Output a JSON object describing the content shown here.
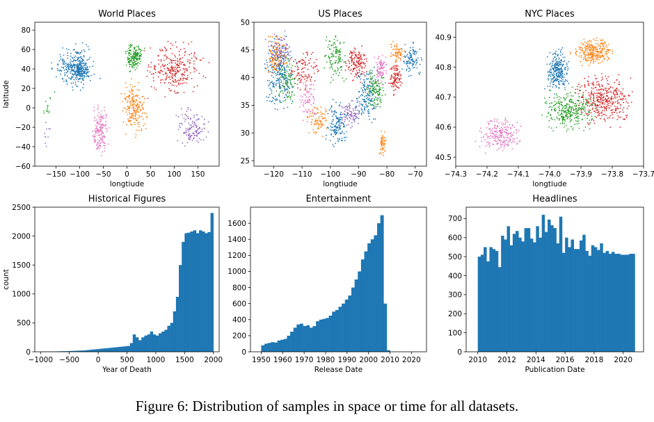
{
  "caption": "Figure 6: Distribution of samples in space or time for all datasets.",
  "colors": {
    "blue": "#1f77b4",
    "orange": "#ff7f0e",
    "green": "#2ca02c",
    "red": "#d62728",
    "purple": "#9467bd",
    "pink": "#e377c2"
  },
  "chart_data": [
    {
      "id": "world",
      "type": "scatter",
      "title": "World Places",
      "xlabel": "longtiude",
      "ylabel": "latitude",
      "xlim": [
        -195,
        195
      ],
      "ylim": [
        -60,
        88
      ],
      "xticks": [
        -150,
        -100,
        -50,
        0,
        50,
        100,
        150
      ],
      "yticks": [
        -60,
        -40,
        -20,
        0,
        20,
        40,
        60,
        80
      ],
      "clusters": [
        {
          "color": "blue",
          "lon": [
            -165,
            -55
          ],
          "lat": [
            15,
            72
          ],
          "n": 260
        },
        {
          "color": "blue",
          "lon": [
            -125,
            -75
          ],
          "lat": [
            25,
            50
          ],
          "n": 140
        },
        {
          "color": "pink",
          "lon": [
            -80,
            -35
          ],
          "lat": [
            -55,
            10
          ],
          "n": 160
        },
        {
          "color": "green",
          "lon": [
            -10,
            40
          ],
          "lat": [
            35,
            70
          ],
          "n": 170
        },
        {
          "color": "orange",
          "lon": [
            -18,
            50
          ],
          "lat": [
            -35,
            35
          ],
          "n": 200
        },
        {
          "color": "red",
          "lon": [
            25,
            180
          ],
          "lat": [
            5,
            75
          ],
          "n": 280
        },
        {
          "color": "purple",
          "lon": [
            95,
            180
          ],
          "lat": [
            -45,
            5
          ],
          "n": 130
        },
        {
          "color": "green",
          "lon": [
            -180,
            -150
          ],
          "lat": [
            -25,
            25
          ],
          "n": 14
        },
        {
          "color": "purple",
          "lon": [
            -180,
            -160
          ],
          "lat": [
            -45,
            -10
          ],
          "n": 10
        }
      ]
    },
    {
      "id": "us",
      "type": "scatter",
      "title": "US Places",
      "xlabel": "longtiude",
      "ylabel": "",
      "xlim": [
        -127,
        -66
      ],
      "ylim": [
        24,
        50
      ],
      "xticks": [
        -120,
        -110,
        -100,
        -90,
        -80,
        -70
      ],
      "yticks": [
        25,
        30,
        35,
        40,
        45,
        50
      ],
      "clusters": [
        {
          "color": "blue",
          "lon": [
            -125,
            -111
          ],
          "lat": [
            32,
            49
          ],
          "n": 260
        },
        {
          "color": "orange",
          "lon": [
            -124,
            -114
          ],
          "lat": [
            39,
            49
          ],
          "n": 120
        },
        {
          "color": "purple",
          "lon": [
            -124,
            -112
          ],
          "lat": [
            41,
            49
          ],
          "n": 80
        },
        {
          "color": "green",
          "lon": [
            -120,
            -110
          ],
          "lat": [
            34,
            45
          ],
          "n": 100
        },
        {
          "color": "red",
          "lon": [
            -116,
            -103
          ],
          "lat": [
            37,
            46
          ],
          "n": 100
        },
        {
          "color": "pink",
          "lon": [
            -112,
            -104
          ],
          "lat": [
            31,
            41
          ],
          "n": 70
        },
        {
          "color": "orange",
          "lon": [
            -109,
            -100
          ],
          "lat": [
            29,
            36
          ],
          "n": 80
        },
        {
          "color": "blue",
          "lon": [
            -102,
            -93
          ],
          "lat": [
            26,
            37
          ],
          "n": 140
        },
        {
          "color": "green",
          "lon": [
            -103,
            -93
          ],
          "lat": [
            38,
            49
          ],
          "n": 120
        },
        {
          "color": "purple",
          "lon": [
            -97,
            -88
          ],
          "lat": [
            30,
            37
          ],
          "n": 90
        },
        {
          "color": "red",
          "lon": [
            -96,
            -85
          ],
          "lat": [
            38,
            47
          ],
          "n": 140
        },
        {
          "color": "blue",
          "lon": [
            -92,
            -82
          ],
          "lat": [
            30,
            43
          ],
          "n": 160
        },
        {
          "color": "green",
          "lon": [
            -88,
            -80
          ],
          "lat": [
            33,
            42
          ],
          "n": 120
        },
        {
          "color": "pink",
          "lon": [
            -85,
            -79
          ],
          "lat": [
            38,
            45
          ],
          "n": 80
        },
        {
          "color": "orange",
          "lon": [
            -83,
            -80
          ],
          "lat": [
            25,
            31
          ],
          "n": 50
        },
        {
          "color": "red",
          "lon": [
            -80,
            -74
          ],
          "lat": [
            36,
            44
          ],
          "n": 100
        },
        {
          "color": "blue",
          "lon": [
            -76,
            -67
          ],
          "lat": [
            40,
            47
          ],
          "n": 100
        },
        {
          "color": "orange",
          "lon": [
            -80,
            -73
          ],
          "lat": [
            42,
            47
          ],
          "n": 60
        }
      ]
    },
    {
      "id": "nyc",
      "type": "scatter",
      "title": "NYC Places",
      "xlabel": "longtiude",
      "ylabel": "",
      "xlim": [
        -74.3,
        -73.7
      ],
      "ylim": [
        40.47,
        40.95
      ],
      "xticks": [
        -74.3,
        -74.2,
        -74.1,
        -74.0,
        -73.9,
        -73.8,
        -73.7
      ],
      "xticklabels": [
        "−74.3",
        "−74.2",
        "−74.1",
        "−74.0",
        "−73.9",
        "−73.8",
        "−73.7"
      ],
      "yticks": [
        40.5,
        40.6,
        40.7,
        40.8,
        40.9
      ],
      "clusters": [
        {
          "color": "pink",
          "lon": [
            -74.25,
            -74.07
          ],
          "lat": [
            40.5,
            40.65
          ],
          "n": 220
        },
        {
          "color": "blue",
          "lon": [
            -74.02,
            -73.93
          ],
          "lat": [
            40.7,
            40.88
          ],
          "n": 260
        },
        {
          "color": "orange",
          "lon": [
            -73.94,
            -73.78
          ],
          "lat": [
            40.79,
            40.91
          ],
          "n": 260
        },
        {
          "color": "red",
          "lon": [
            -73.94,
            -73.71
          ],
          "lat": [
            40.58,
            40.8
          ],
          "n": 380
        },
        {
          "color": "green",
          "lon": [
            -74.04,
            -73.83
          ],
          "lat": [
            40.57,
            40.74
          ],
          "n": 320
        }
      ]
    },
    {
      "id": "hist",
      "type": "bar",
      "title": "Historical Figures",
      "xlabel": "Year of Death",
      "ylabel": "count",
      "xlim": [
        -1100,
        2100
      ],
      "ylim": [
        0,
        2500
      ],
      "xticks": [
        -1000,
        -500,
        0,
        500,
        1000,
        1500,
        2000
      ],
      "xticklabels": [
        "−1000",
        "−500",
        "0",
        "500",
        "1000",
        "1500",
        "2000"
      ],
      "yticks": [
        0,
        500,
        1000,
        1500,
        2000,
        2500
      ],
      "bin_start": -1000,
      "bin_width": 50,
      "values": [
        3,
        4,
        5,
        5,
        6,
        7,
        8,
        10,
        10,
        12,
        14,
        16,
        18,
        20,
        22,
        25,
        30,
        35,
        40,
        45,
        50,
        55,
        60,
        65,
        70,
        75,
        80,
        85,
        90,
        95,
        100,
        150,
        300,
        250,
        200,
        250,
        280,
        300,
        350,
        300,
        280,
        320,
        350,
        380,
        450,
        500,
        700,
        950,
        1500,
        1900,
        2050,
        2060,
        2080,
        2100,
        2050,
        2100,
        2080,
        2050,
        2070,
        2400
      ]
    },
    {
      "id": "ent",
      "type": "bar",
      "title": "Entertainment",
      "xlabel": "Release Date",
      "ylabel": "",
      "xlim": [
        1945,
        2027
      ],
      "ylim": [
        0,
        1800
      ],
      "xticks": [
        1950,
        1960,
        1970,
        1980,
        1990,
        2000,
        2010,
        2020
      ],
      "yticks": [
        0,
        200,
        400,
        600,
        800,
        1000,
        1200,
        1400,
        1600
      ],
      "bin_start": 1950,
      "bin_width": 1.5,
      "values": [
        80,
        100,
        110,
        120,
        115,
        140,
        150,
        160,
        200,
        250,
        300,
        340,
        350,
        320,
        330,
        300,
        320,
        380,
        400,
        410,
        420,
        450,
        500,
        520,
        560,
        600,
        650,
        700,
        800,
        900,
        1000,
        1150,
        1250,
        1350,
        1400,
        1450,
        1600,
        1700,
        600,
        20
      ]
    },
    {
      "id": "head",
      "type": "bar",
      "title": "Headlines",
      "xlabel": "Publication Date",
      "ylabel": "",
      "xlim": [
        2009.2,
        2021.4
      ],
      "ylim": [
        0,
        760
      ],
      "xticks": [
        2010,
        2012,
        2014,
        2016,
        2018,
        2020
      ],
      "yticks": [
        0,
        100,
        200,
        300,
        400,
        500,
        600,
        700
      ],
      "bin_start": 2010,
      "bin_width": 0.2,
      "values": [
        500,
        510,
        550,
        475,
        550,
        540,
        530,
        445,
        610,
        590,
        660,
        560,
        620,
        635,
        600,
        580,
        650,
        650,
        595,
        575,
        660,
        600,
        720,
        630,
        695,
        665,
        650,
        570,
        710,
        520,
        600,
        550,
        590,
        540,
        540,
        585,
        615,
        530,
        505,
        560,
        550,
        535,
        570,
        520,
        530,
        515,
        525,
        515,
        515,
        510,
        510,
        510,
        515,
        515
      ]
    }
  ]
}
